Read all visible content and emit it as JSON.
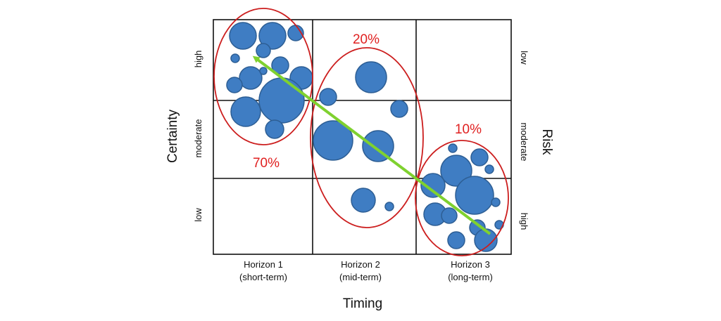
{
  "x_axis": {
    "title": "Timing",
    "columns": [
      {
        "name": "Horizon 1",
        "term": "(short-term)"
      },
      {
        "name": "Horizon 2",
        "term": "(mid-term)"
      },
      {
        "name": "Horizon 3",
        "term": "(long-term)"
      }
    ]
  },
  "left_axis": {
    "title": "Certainty",
    "levels": [
      "high",
      "moderate",
      "low"
    ]
  },
  "right_axis": {
    "title": "Risk",
    "levels": [
      "low",
      "moderate",
      "high"
    ]
  },
  "groups": [
    {
      "label": "70%"
    },
    {
      "label": "20%"
    },
    {
      "label": "10%"
    }
  ],
  "colors": {
    "bubble_fill": "#3f7dc3",
    "bubble_stroke": "#2d5e94",
    "ellipse": "#cc1e1e",
    "percent_text": "#e02020",
    "arrow": "#7fd12f",
    "grid": "#111111"
  }
}
